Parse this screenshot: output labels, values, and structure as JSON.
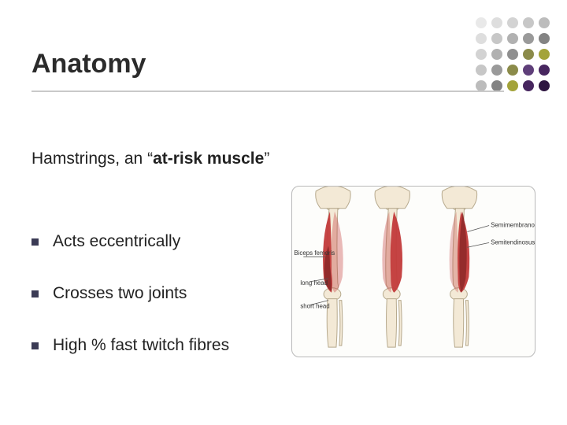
{
  "slide": {
    "title": "Anatomy",
    "subtitle_pre": "Hamstrings, an ",
    "subtitle_emph_open": "“",
    "subtitle_emph": "at-risk muscle",
    "subtitle_emph_close": "”",
    "bullets": [
      "Acts eccentrically",
      "Crosses two joints",
      "High % fast twitch fibres"
    ]
  },
  "decor": {
    "dot_colors": [
      "#e9e9e9",
      "#dedede",
      "#d3d3d3",
      "#c7c7c7",
      "#bcbcbc",
      "#dedede",
      "#c7c7c7",
      "#b1b1b1",
      "#9a9a9a",
      "#838383",
      "#d3d3d3",
      "#b1b1b1",
      "#8f8f8f",
      "#8b8b4a",
      "#a3a33a",
      "#c7c7c7",
      "#9a9a9a",
      "#8b8b4a",
      "#5f3f7a",
      "#47265f",
      "#bcbcbc",
      "#838383",
      "#a3a33a",
      "#47265f",
      "#2e1540"
    ]
  },
  "figure": {
    "background": "#fdfdfb",
    "border_color": "#b9b9b9",
    "bone_fill": "#f3e9d6",
    "bone_stroke": "#b6a98d",
    "spine_fill": "#e8ddc5",
    "muscle_main": "#c23a3a",
    "muscle_shadow": "#8f2a2a",
    "label_color": "#333333",
    "leader_color": "#555555",
    "label_fontsize": 8,
    "muscle_labels": {
      "semimembranosus": "Semimembranosus",
      "semitendinosus": "Semitendinosus",
      "biceps_femoris": "Biceps femoris",
      "long_head": "long head",
      "short_head": "short head"
    }
  }
}
